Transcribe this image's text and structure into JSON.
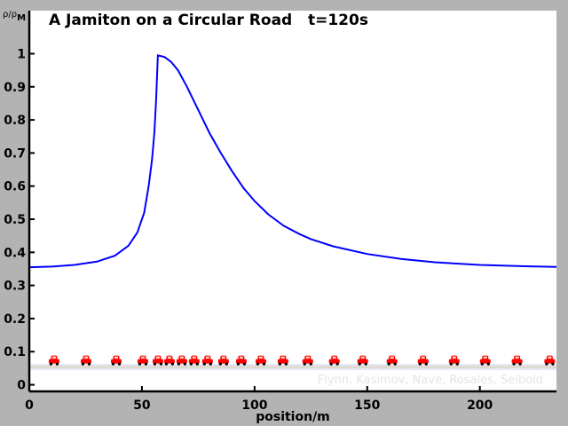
{
  "chart_data": {
    "type": "line",
    "title": "A Jamiton on a Circular Road   t=120s",
    "xlabel": "position/m",
    "ylabel": "ρ/ρ",
    "ylabel_sub": "M",
    "xlim": [
      0,
      234
    ],
    "ylim": [
      -0.02,
      1.13
    ],
    "xticks": [
      0,
      50,
      100,
      150,
      200
    ],
    "yticks": [
      0,
      0.1,
      0.2,
      0.3,
      0.4,
      0.5,
      0.6,
      0.7,
      0.8,
      0.9,
      1
    ],
    "ytick_labels": [
      "0",
      "0.1",
      "0.2",
      "0.3",
      "0.4",
      "0.5",
      "0.6",
      "0.7",
      "0.8",
      "0.9",
      "1"
    ],
    "series": [
      {
        "name": "density",
        "color": "#0000ff",
        "x": [
          0,
          10,
          20,
          30,
          38,
          44,
          48,
          51,
          53,
          54.5,
          55.5,
          56.3,
          56.8,
          57.1,
          60,
          63,
          66,
          70,
          75,
          80,
          85,
          90,
          95,
          100,
          106,
          113,
          120,
          125,
          135,
          150,
          165,
          180,
          200,
          220,
          234
        ],
        "y": [
          0.355,
          0.357,
          0.362,
          0.372,
          0.39,
          0.42,
          0.46,
          0.52,
          0.6,
          0.68,
          0.76,
          0.86,
          0.95,
          0.995,
          0.99,
          0.975,
          0.95,
          0.9,
          0.83,
          0.76,
          0.7,
          0.645,
          0.595,
          0.555,
          0.515,
          0.48,
          0.455,
          0.44,
          0.418,
          0.395,
          0.38,
          0.37,
          0.362,
          0.358,
          0.356
        ]
      }
    ],
    "cars": {
      "y": 0.072,
      "color": "#ff0000",
      "x": [
        11,
        25.2,
        38.6,
        50.4,
        57.1,
        62.2,
        67.7,
        73.2,
        79.1,
        86.2,
        94.1,
        102.8,
        112.6,
        123.6,
        135.4,
        148,
        161,
        174.8,
        188.6,
        202.4,
        216.5,
        231
      ]
    },
    "credit": "Flynn, Kasimov, Nave, Rosales, Seibold"
  }
}
